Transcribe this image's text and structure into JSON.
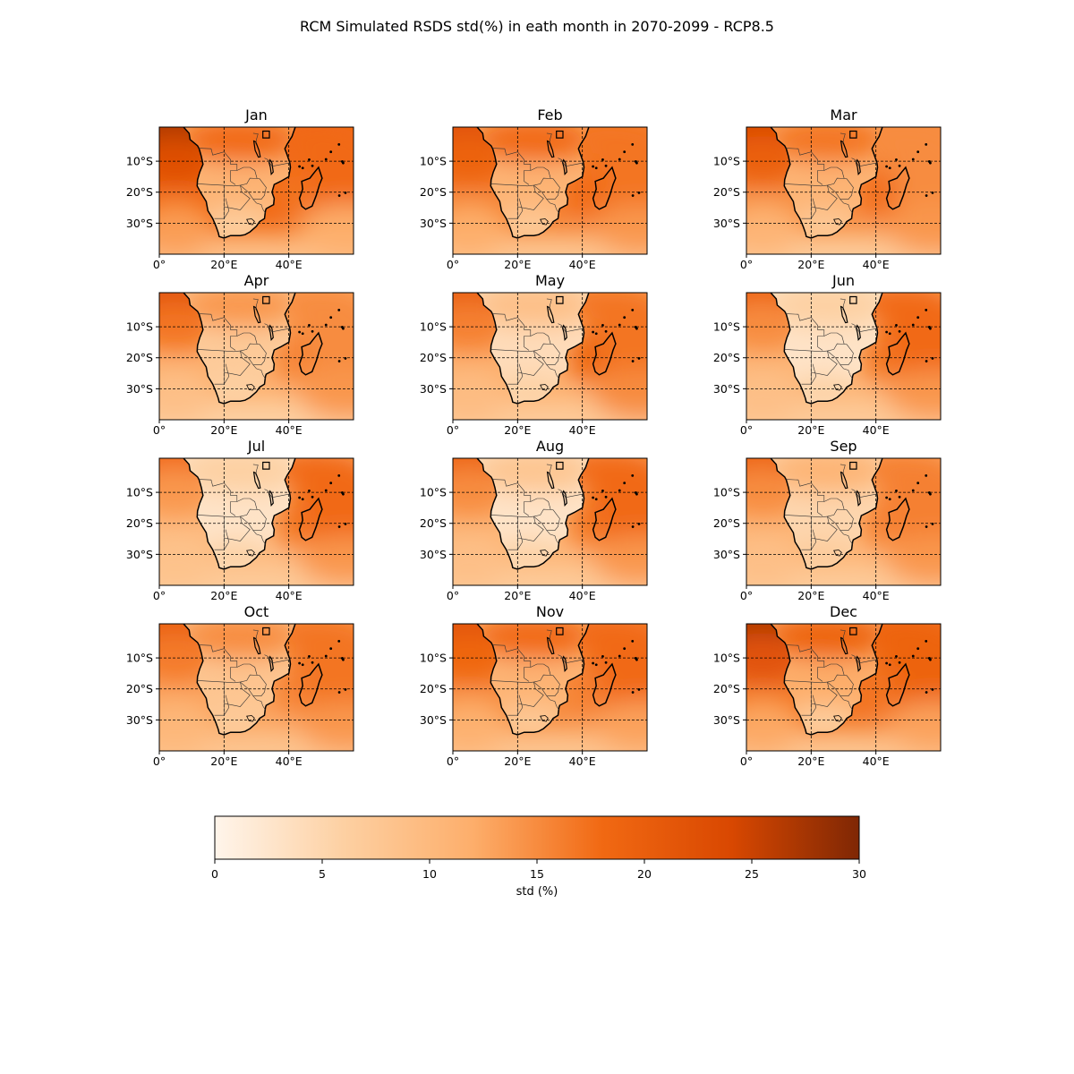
{
  "title": "RCM Simulated RSDS std(%) in eath month in 2070-2099 - RCP8.5",
  "chart_data": {
    "type": "heatmap",
    "title": "RCM Simulated RSDS std(%) in eath month in 2070-2099 - RCP8.5",
    "projection": "lat-lon map",
    "lon_range": [
      0,
      60
    ],
    "lat_range": [
      -40,
      1
    ],
    "lon_ticks": [
      0,
      20,
      40
    ],
    "lon_tick_labels": [
      "0°",
      "20°E",
      "40°E"
    ],
    "lat_ticks": [
      -10,
      -20,
      -30
    ],
    "lat_tick_labels": [
      "10°S",
      "20°S",
      "30°S"
    ],
    "grid": true,
    "grid_style": "dashed",
    "colormap": "Oranges",
    "color_stops": [
      "#fff5eb",
      "#fdd0a2",
      "#fdae6b",
      "#f16913",
      "#d94801",
      "#7f2704"
    ],
    "vmin": 0,
    "vmax": 30,
    "colorbar": {
      "label": "std (%)",
      "ticks": [
        0,
        5,
        10,
        15,
        20,
        25,
        30
      ],
      "tick_labels": [
        "0",
        "5",
        "10",
        "15",
        "20",
        "25",
        "30"
      ],
      "placement": "bottom"
    },
    "panels": [
      {
        "name": "Jan",
        "nw_ocean": 27,
        "w_ocean": 18,
        "s_ocean": 9,
        "se_ocean": 12,
        "ne_ocean": 18,
        "mozambique_channel": 17,
        "n_land": 18,
        "c_land": 11,
        "s_land": 6
      },
      {
        "name": "Feb",
        "nw_ocean": 22,
        "w_ocean": 16,
        "s_ocean": 8,
        "se_ocean": 14,
        "ne_ocean": 17,
        "mozambique_channel": 18,
        "n_land": 18,
        "c_land": 11,
        "s_land": 7
      },
      {
        "name": "Mar",
        "nw_ocean": 24,
        "w_ocean": 15,
        "s_ocean": 7,
        "se_ocean": 14,
        "ne_ocean": 15,
        "mozambique_channel": 18,
        "n_land": 17,
        "c_land": 11,
        "s_land": 7
      },
      {
        "name": "Apr",
        "nw_ocean": 22,
        "w_ocean": 12,
        "s_ocean": 6,
        "se_ocean": 14,
        "ne_ocean": 15,
        "mozambique_channel": 16,
        "n_land": 14,
        "c_land": 7,
        "s_land": 6
      },
      {
        "name": "May",
        "nw_ocean": 20,
        "w_ocean": 12,
        "s_ocean": 7,
        "se_ocean": 15,
        "ne_ocean": 17,
        "mozambique_channel": 19,
        "n_land": 9,
        "c_land": 4,
        "s_land": 6
      },
      {
        "name": "Jun",
        "nw_ocean": 19,
        "w_ocean": 11,
        "s_ocean": 7,
        "se_ocean": 14,
        "ne_ocean": 18,
        "mozambique_channel": 17,
        "n_land": 6,
        "c_land": 3,
        "s_land": 6
      },
      {
        "name": "Jul",
        "nw_ocean": 18,
        "w_ocean": 10,
        "s_ocean": 7,
        "se_ocean": 14,
        "ne_ocean": 18,
        "mozambique_channel": 17,
        "n_land": 6,
        "c_land": 3,
        "s_land": 6
      },
      {
        "name": "Aug",
        "nw_ocean": 19,
        "w_ocean": 11,
        "s_ocean": 7,
        "se_ocean": 14,
        "ne_ocean": 18,
        "mozambique_channel": 17,
        "n_land": 8,
        "c_land": 3,
        "s_land": 6
      },
      {
        "name": "Sep",
        "nw_ocean": 19,
        "w_ocean": 11,
        "s_ocean": 7,
        "se_ocean": 14,
        "ne_ocean": 16,
        "mozambique_channel": 16,
        "n_land": 11,
        "c_land": 5,
        "s_land": 7
      },
      {
        "name": "Oct",
        "nw_ocean": 20,
        "w_ocean": 13,
        "s_ocean": 8,
        "se_ocean": 14,
        "ne_ocean": 17,
        "mozambique_channel": 16,
        "n_land": 15,
        "c_land": 8,
        "s_land": 7
      },
      {
        "name": "Nov",
        "nw_ocean": 22,
        "w_ocean": 15,
        "s_ocean": 8,
        "se_ocean": 13,
        "ne_ocean": 18,
        "mozambique_channel": 16,
        "n_land": 18,
        "c_land": 11,
        "s_land": 7
      },
      {
        "name": "Dec",
        "nw_ocean": 27,
        "w_ocean": 17,
        "s_ocean": 8,
        "se_ocean": 13,
        "ne_ocean": 19,
        "mozambique_channel": 17,
        "n_land": 19,
        "c_land": 12,
        "s_land": 6
      }
    ]
  }
}
